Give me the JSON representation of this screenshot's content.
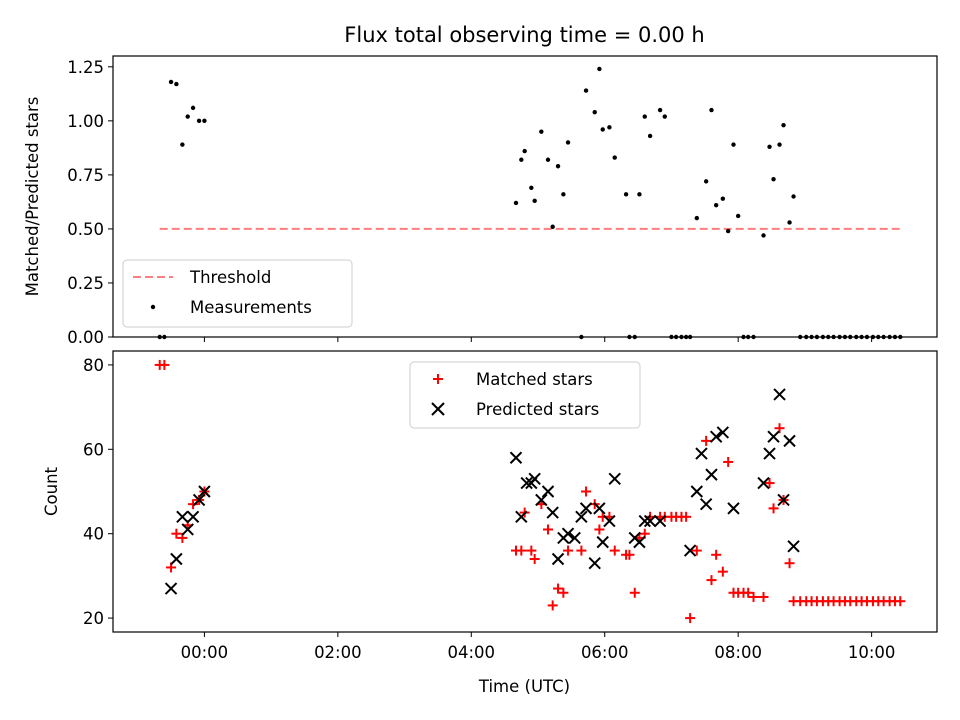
{
  "chart_data": [
    {
      "type": "scatter",
      "title": "Flux total observing time = 0.00 h",
      "xlabel": "",
      "ylabel": "Matched/Predicted stars",
      "xlim": [
        -1.37,
        10.98
      ],
      "ylim": [
        0,
        1.3
      ],
      "yticks": [
        0.0,
        0.25,
        0.5,
        0.75,
        1.0,
        1.25
      ],
      "ytick_labels": [
        "0.00",
        "0.25",
        "0.50",
        "0.75",
        "1.00",
        "1.25"
      ],
      "xticks": [
        0,
        2,
        4,
        6,
        8,
        10
      ],
      "legend": [
        "Threshold",
        "Measurements"
      ],
      "legend_position": "lower-left",
      "grid": false,
      "threshold": {
        "name": "Threshold",
        "value": 0.5,
        "x_range": [
          -0.67,
          10.43
        ],
        "color": "#ff7f7f",
        "style": "dashed"
      },
      "series": [
        {
          "name": "Measurements",
          "color": "#000000",
          "marker": "dot",
          "x": [
            -0.67,
            -0.6,
            -0.5,
            -0.42,
            -0.33,
            -0.25,
            -0.17,
            -0.08,
            0.0,
            4.67,
            4.75,
            4.8,
            4.9,
            4.95,
            5.05,
            5.15,
            5.22,
            5.3,
            5.38,
            5.45,
            5.65,
            5.72,
            5.85,
            5.92,
            5.97,
            6.07,
            6.15,
            6.32,
            6.37,
            6.45,
            6.52,
            6.6,
            6.68,
            6.83,
            6.9,
            7.0,
            7.07,
            7.15,
            7.22,
            7.28,
            7.38,
            7.52,
            7.6,
            7.67,
            7.77,
            7.85,
            7.93,
            8.0,
            8.08,
            8.15,
            8.23,
            8.38,
            8.47,
            8.53,
            8.62,
            8.68,
            8.77,
            8.83,
            8.93,
            9.02,
            9.1,
            9.18,
            9.27,
            9.35,
            9.43,
            9.52,
            9.6,
            9.68,
            9.77,
            9.85,
            9.93,
            10.02,
            10.1,
            10.18,
            10.27,
            10.35,
            10.43
          ],
          "y": [
            0,
            0,
            1.18,
            1.17,
            0.89,
            1.02,
            1.06,
            1.0,
            1.0,
            0.62,
            0.82,
            0.86,
            0.69,
            0.63,
            0.95,
            0.82,
            0.51,
            0.79,
            0.66,
            0.9,
            0.0,
            1.14,
            1.04,
            1.24,
            0.96,
            0.97,
            0.83,
            0.66,
            0.0,
            0.0,
            0.66,
            1.02,
            0.93,
            1.05,
            1.02,
            0.0,
            0.0,
            0.0,
            0.0,
            0.0,
            0.55,
            0.72,
            1.05,
            0.61,
            0.64,
            0.49,
            0.89,
            0.56,
            0.0,
            0.0,
            0.0,
            0.47,
            0.88,
            0.73,
            0.89,
            0.98,
            0.53,
            0.65,
            0.0,
            0.0,
            0.0,
            0.0,
            0.0,
            0.0,
            0.0,
            0.0,
            0.0,
            0.0,
            0.0,
            0.0,
            0.0,
            0.0,
            0.0,
            0.0,
            0.0,
            0.0,
            0.0
          ]
        }
      ]
    },
    {
      "type": "scatter",
      "title": "",
      "xlabel": "Time (UTC)",
      "ylabel": "Count",
      "xlim": [
        -1.37,
        10.98
      ],
      "ylim": [
        16.7,
        83.3
      ],
      "yticks": [
        20,
        40,
        60,
        80
      ],
      "xticks": [
        0,
        2,
        4,
        6,
        8,
        10
      ],
      "xtick_labels": [
        "00:00",
        "02:00",
        "04:00",
        "06:00",
        "08:00",
        "10:00"
      ],
      "legend": [
        "Matched stars",
        "Predicted stars"
      ],
      "legend_position": "upper-center",
      "grid": false,
      "series": [
        {
          "name": "Matched stars",
          "color": "#ff0000",
          "marker": "plus",
          "x": [
            -0.67,
            -0.6,
            -0.5,
            -0.42,
            -0.33,
            -0.25,
            -0.17,
            -0.08,
            0.0,
            4.67,
            4.75,
            4.8,
            4.9,
            4.95,
            5.05,
            5.15,
            5.22,
            5.3,
            5.38,
            5.45,
            5.65,
            5.72,
            5.85,
            5.92,
            5.97,
            6.07,
            6.15,
            6.32,
            6.37,
            6.45,
            6.52,
            6.6,
            6.68,
            6.83,
            6.9,
            7.0,
            7.07,
            7.15,
            7.22,
            7.28,
            7.38,
            7.52,
            7.6,
            7.67,
            7.77,
            7.85,
            7.93,
            8.0,
            8.08,
            8.15,
            8.23,
            8.38,
            8.47,
            8.53,
            8.62,
            8.68,
            8.77,
            8.83,
            8.93,
            9.02,
            9.1,
            9.18,
            9.27,
            9.35,
            9.43,
            9.52,
            9.6,
            9.68,
            9.77,
            9.85,
            9.93,
            10.02,
            10.1,
            10.18,
            10.27,
            10.35,
            10.43
          ],
          "y": [
            80,
            80,
            32,
            40,
            39,
            42,
            47,
            48,
            50,
            36,
            36,
            45,
            36,
            34,
            47,
            41,
            23,
            27,
            26,
            36,
            36,
            50,
            47,
            41,
            44,
            44,
            36,
            35,
            35,
            26,
            39,
            40,
            44,
            44,
            44,
            44,
            44,
            44,
            44,
            20,
            36,
            62,
            29,
            35,
            31,
            57,
            26,
            26,
            26,
            26,
            25,
            25,
            52,
            46,
            65,
            48,
            33,
            24,
            24,
            24,
            24,
            24,
            24,
            24,
            24,
            24,
            24,
            24,
            24,
            24,
            24,
            24,
            24,
            24,
            24,
            24,
            24
          ]
        },
        {
          "name": "Predicted stars",
          "color": "#000000",
          "marker": "x",
          "x": [
            -0.5,
            -0.42,
            -0.33,
            -0.25,
            -0.17,
            -0.08,
            0.0,
            4.67,
            4.75,
            4.83,
            4.9,
            4.95,
            5.05,
            5.15,
            5.22,
            5.3,
            5.38,
            5.45,
            5.55,
            5.65,
            5.72,
            5.85,
            5.92,
            5.97,
            6.07,
            6.15,
            6.45,
            6.52,
            6.6,
            6.68,
            6.83,
            7.28,
            7.38,
            7.45,
            7.52,
            7.6,
            7.67,
            7.77,
            7.93,
            8.38,
            8.47,
            8.53,
            8.62,
            8.68,
            8.77,
            8.83
          ],
          "y": [
            27,
            34,
            44,
            41,
            44,
            48,
            50,
            58,
            44,
            52,
            52,
            53,
            48,
            50,
            45,
            34,
            39,
            40,
            39,
            44,
            46,
            33,
            46,
            38,
            43,
            53,
            39,
            38,
            43,
            43,
            43,
            36,
            50,
            59,
            47,
            54,
            63,
            64,
            46,
            52,
            59,
            63,
            73,
            48,
            62,
            37
          ]
        }
      ]
    }
  ]
}
